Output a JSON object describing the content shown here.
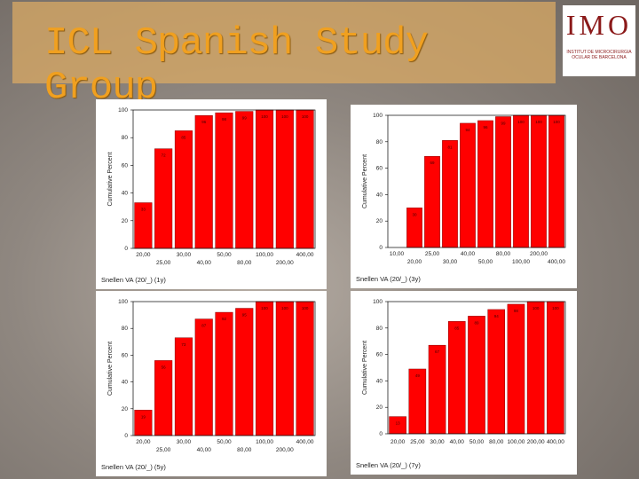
{
  "header": {
    "title": "ICL Spanish Study Group"
  },
  "logo": {
    "name": "IMO",
    "subtitle": "INSTITUT DE MICROCIRURGIA OCULAR DE BARCELONA"
  },
  "chart_data": [
    {
      "type": "bar",
      "color": "#ff0000",
      "xlabel": "Snellen VA (20/_) (1y)",
      "ylabel": "Cumulative Percent",
      "categories": [
        "20,00",
        "25,00",
        "30,00",
        "40,00",
        "50,00",
        "80,00",
        "100,00",
        "200,00",
        "400,00"
      ],
      "values": [
        33,
        72,
        85,
        96,
        98,
        99,
        100,
        100,
        100
      ],
      "ylim": [
        0,
        100
      ],
      "yticks": [
        0,
        20,
        40,
        60,
        80,
        100
      ],
      "stagger_labels": true
    },
    {
      "type": "bar",
      "color": "#ff0000",
      "xlabel": "Snellen VA (20/_) (3y)",
      "ylabel": "Cumulative Percent",
      "categories": [
        "10,00",
        "20,00",
        "25,00",
        "30,00",
        "40,00",
        "50,00",
        "80,00",
        "100,00",
        "200,00",
        "400,00"
      ],
      "values": [
        0,
        30,
        69,
        81,
        94,
        96,
        99,
        100,
        100,
        100
      ],
      "ylim": [
        0,
        100
      ],
      "yticks": [
        0,
        20,
        40,
        60,
        80,
        100
      ],
      "stagger_labels": true
    },
    {
      "type": "bar",
      "color": "#ff0000",
      "xlabel": "Snellen VA (20/_) (5y)",
      "ylabel": "Cumulative Percent",
      "categories": [
        "20,00",
        "25,00",
        "30,00",
        "40,00",
        "50,00",
        "80,00",
        "100,00",
        "200,00",
        "400,00"
      ],
      "values": [
        19,
        56,
        73,
        87,
        92,
        95,
        100,
        100,
        100
      ],
      "ylim": [
        0,
        100
      ],
      "yticks": [
        0,
        20,
        40,
        60,
        80,
        100
      ],
      "stagger_labels": true
    },
    {
      "type": "bar",
      "color": "#ff0000",
      "xlabel": "Snellen VA (20/_) (7y)",
      "ylabel": "Cumulative Percent",
      "categories": [
        "20,00",
        "25,00",
        "30,00",
        "40,00",
        "50,00",
        "80,00",
        "100,00",
        "200,00",
        "400,00"
      ],
      "values": [
        13,
        49,
        67,
        85,
        89,
        94,
        98,
        100,
        100
      ],
      "ylim": [
        0,
        100
      ],
      "yticks": [
        0,
        20,
        40,
        60,
        80,
        100
      ],
      "stagger_labels": false
    }
  ]
}
